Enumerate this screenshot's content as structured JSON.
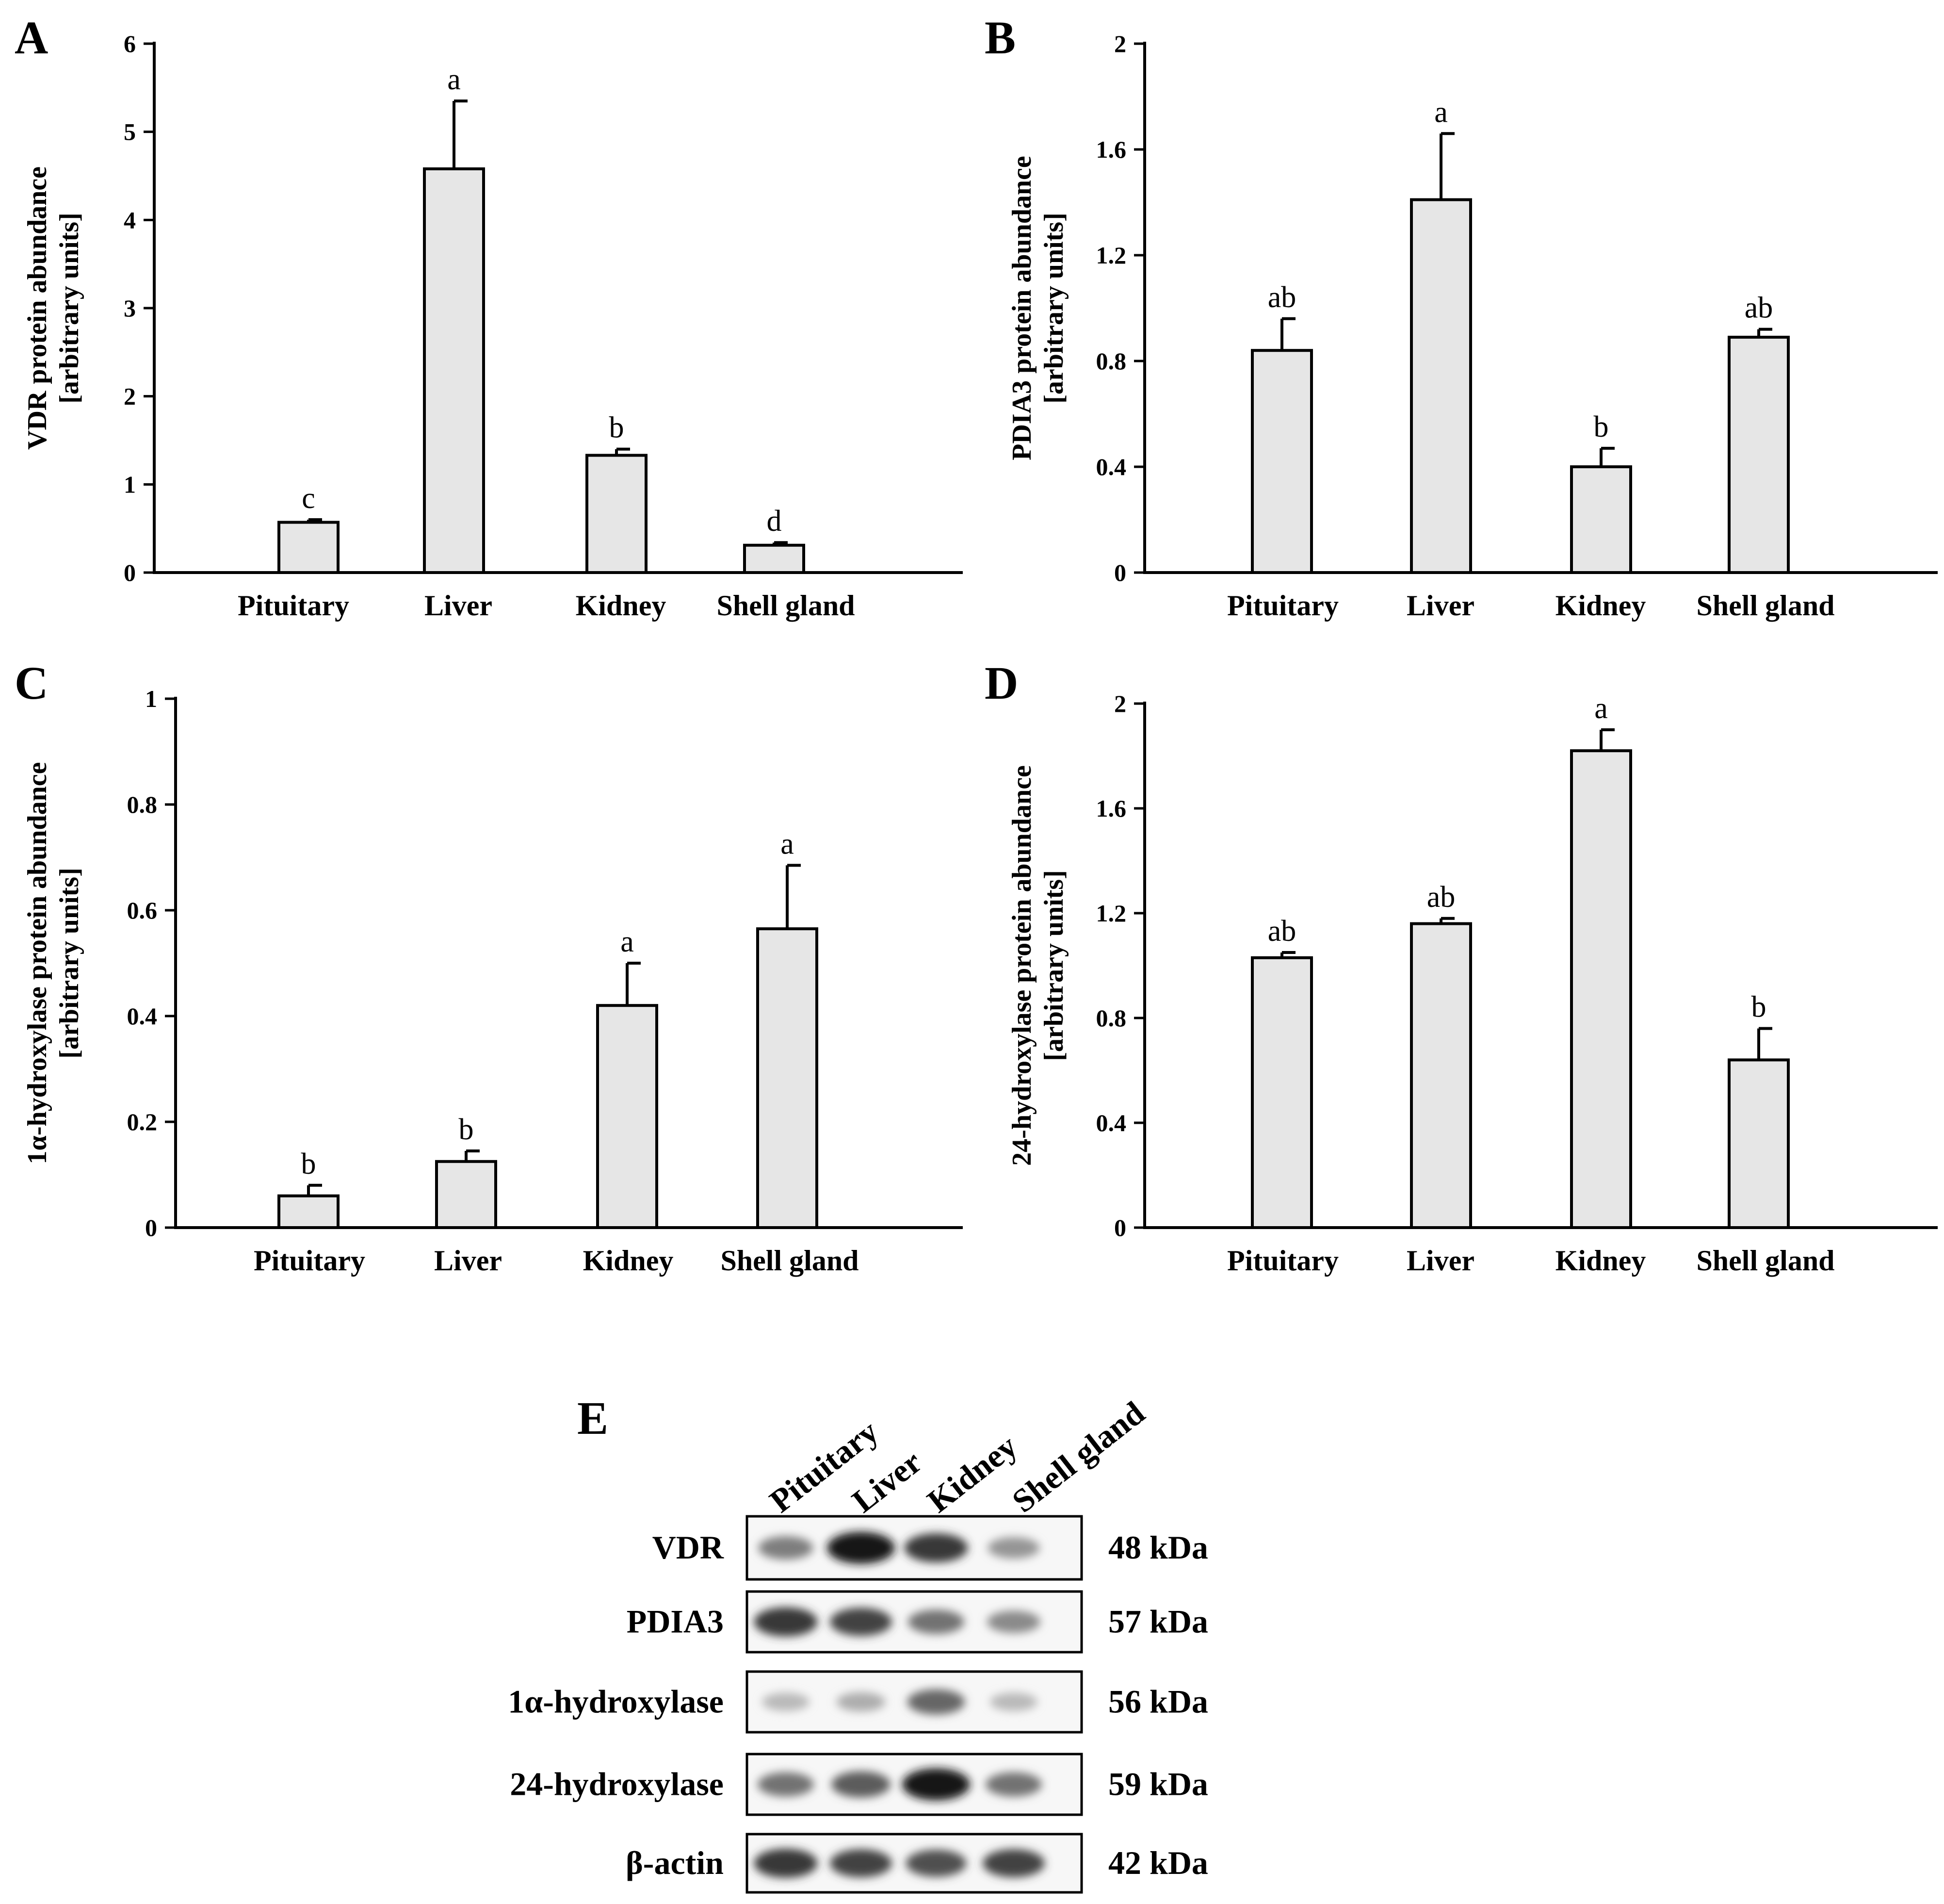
{
  "chart_data": [
    {
      "panel": "A",
      "type": "bar",
      "categories": [
        "Pituitary",
        "Liver",
        "Kidney",
        "Shell gland"
      ],
      "values": [
        0.57,
        4.58,
        1.33,
        0.31
      ],
      "errors": [
        0.03,
        0.77,
        0.07,
        0.03
      ],
      "significance": [
        "c",
        "a",
        "b",
        "d"
      ],
      "ylabel": [
        "VDR protein abundance",
        "[arbitrary units]"
      ],
      "ylim": [
        0,
        6
      ],
      "yticks": [
        "0",
        "1",
        "2",
        "3",
        "4",
        "5",
        "6"
      ],
      "grid": false
    },
    {
      "panel": "B",
      "type": "bar",
      "categories": [
        "Pituitary",
        "Liver",
        "Kidney",
        "Shell gland"
      ],
      "values": [
        0.84,
        1.41,
        0.4,
        0.89
      ],
      "errors": [
        0.12,
        0.25,
        0.07,
        0.03
      ],
      "significance": [
        "ab",
        "a",
        "b",
        "ab"
      ],
      "ylabel": [
        "PDIA3 protein abundance",
        "[arbitrary units]"
      ],
      "ylim": [
        0,
        2
      ],
      "yticks": [
        "0",
        "0.4",
        "0.8",
        "1.2",
        "1.6",
        "2"
      ],
      "grid": false
    },
    {
      "panel": "C",
      "type": "bar",
      "categories": [
        "Pituitary",
        "Liver",
        "Kidney",
        "Shell gland"
      ],
      "values": [
        0.06,
        0.125,
        0.42,
        0.565
      ],
      "errors": [
        0.02,
        0.02,
        0.08,
        0.12
      ],
      "significance": [
        "b",
        "b",
        "a",
        "a"
      ],
      "ylabel": [
        "1α-hydroxylase protein abundance",
        "[arbitrary units]"
      ],
      "ylim": [
        0,
        1
      ],
      "yticks": [
        "0",
        "0.2",
        "0.4",
        "0.6",
        "0.8",
        "1"
      ],
      "grid": false
    },
    {
      "panel": "D",
      "type": "bar",
      "categories": [
        "Pituitary",
        "Liver",
        "Kidney",
        "Shell gland"
      ],
      "values": [
        1.03,
        1.16,
        1.82,
        0.64
      ],
      "errors": [
        0.02,
        0.02,
        0.08,
        0.12
      ],
      "significance": [
        "ab",
        "ab",
        "a",
        "b"
      ],
      "ylabel": [
        "24-hydroxylase protein abundance",
        "[arbitrary units]"
      ],
      "ylim": [
        0,
        2
      ],
      "yticks": [
        "0",
        "0.4",
        "0.8",
        "1.2",
        "1.6",
        "2"
      ],
      "grid": false
    }
  ],
  "western_blot": {
    "panel": "E",
    "lanes": [
      "Pituitary",
      "Liver",
      "Kidney",
      "Shell gland"
    ],
    "rows": [
      {
        "protein": "VDR",
        "size": "48 kDa",
        "intensity": [
          0.55,
          1.0,
          0.85,
          0.45
        ]
      },
      {
        "protein": "PDIA3",
        "size": "57 kDa",
        "intensity": [
          0.85,
          0.8,
          0.6,
          0.5
        ]
      },
      {
        "protein": "1α-hydroxylase",
        "size": "56 kDa",
        "intensity": [
          0.3,
          0.35,
          0.65,
          0.3
        ]
      },
      {
        "protein": "24-hydroxylase",
        "size": "59 kDa",
        "intensity": [
          0.6,
          0.7,
          1.0,
          0.6
        ]
      },
      {
        "protein": "β-actin",
        "size": "42 kDa",
        "intensity": [
          0.85,
          0.8,
          0.75,
          0.8
        ]
      }
    ]
  },
  "colors": {
    "bar_fill": "#e6e6e6",
    "stroke": "#000000",
    "background": "#ffffff"
  }
}
